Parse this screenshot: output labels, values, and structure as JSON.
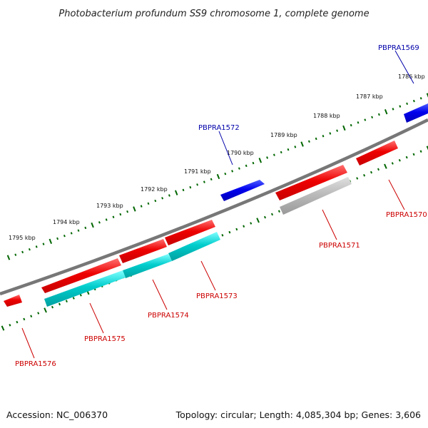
{
  "title": "Photobacterium profundum SS9 chromosome 1, complete genome",
  "footer": {
    "accession": "Accession: NC_006370",
    "summary": "Topology: circular; Length: 4,085,304 bp; Genes: 3,606"
  },
  "colors": {
    "forward_gene": "#0000ee",
    "reverse_gene": "#ee0000",
    "rna": "#00cccc",
    "pseudo": "#bbbbbb",
    "backbone": "#777777",
    "ticks": "#006600",
    "forward_label": "#0000aa",
    "reverse_label": "#cc0000"
  },
  "scale_labels": [
    "1786 kbp",
    "1787 kbp",
    "1788 kbp",
    "1789 kbp",
    "1790 kbp",
    "1791 kbp",
    "1792 kbp",
    "1793 kbp",
    "1794 kbp",
    "1795 kbp"
  ],
  "genes": [
    {
      "id": "PBPRA1569",
      "strand": "forward",
      "type": "gene"
    },
    {
      "id": "PBPRA1570",
      "strand": "reverse",
      "type": "gene"
    },
    {
      "id": "PBPRA1571",
      "strand": "reverse",
      "type": "gene"
    },
    {
      "id": "PBPRA1572",
      "strand": "forward",
      "type": "gene"
    },
    {
      "id": "PBPRA1573",
      "strand": "reverse",
      "type": "gene"
    },
    {
      "id": "PBPRA1574",
      "strand": "reverse",
      "type": "gene"
    },
    {
      "id": "PBPRA1575",
      "strand": "reverse",
      "type": "gene"
    },
    {
      "id": "PBPRA1576",
      "strand": "reverse",
      "type": "gene"
    }
  ]
}
